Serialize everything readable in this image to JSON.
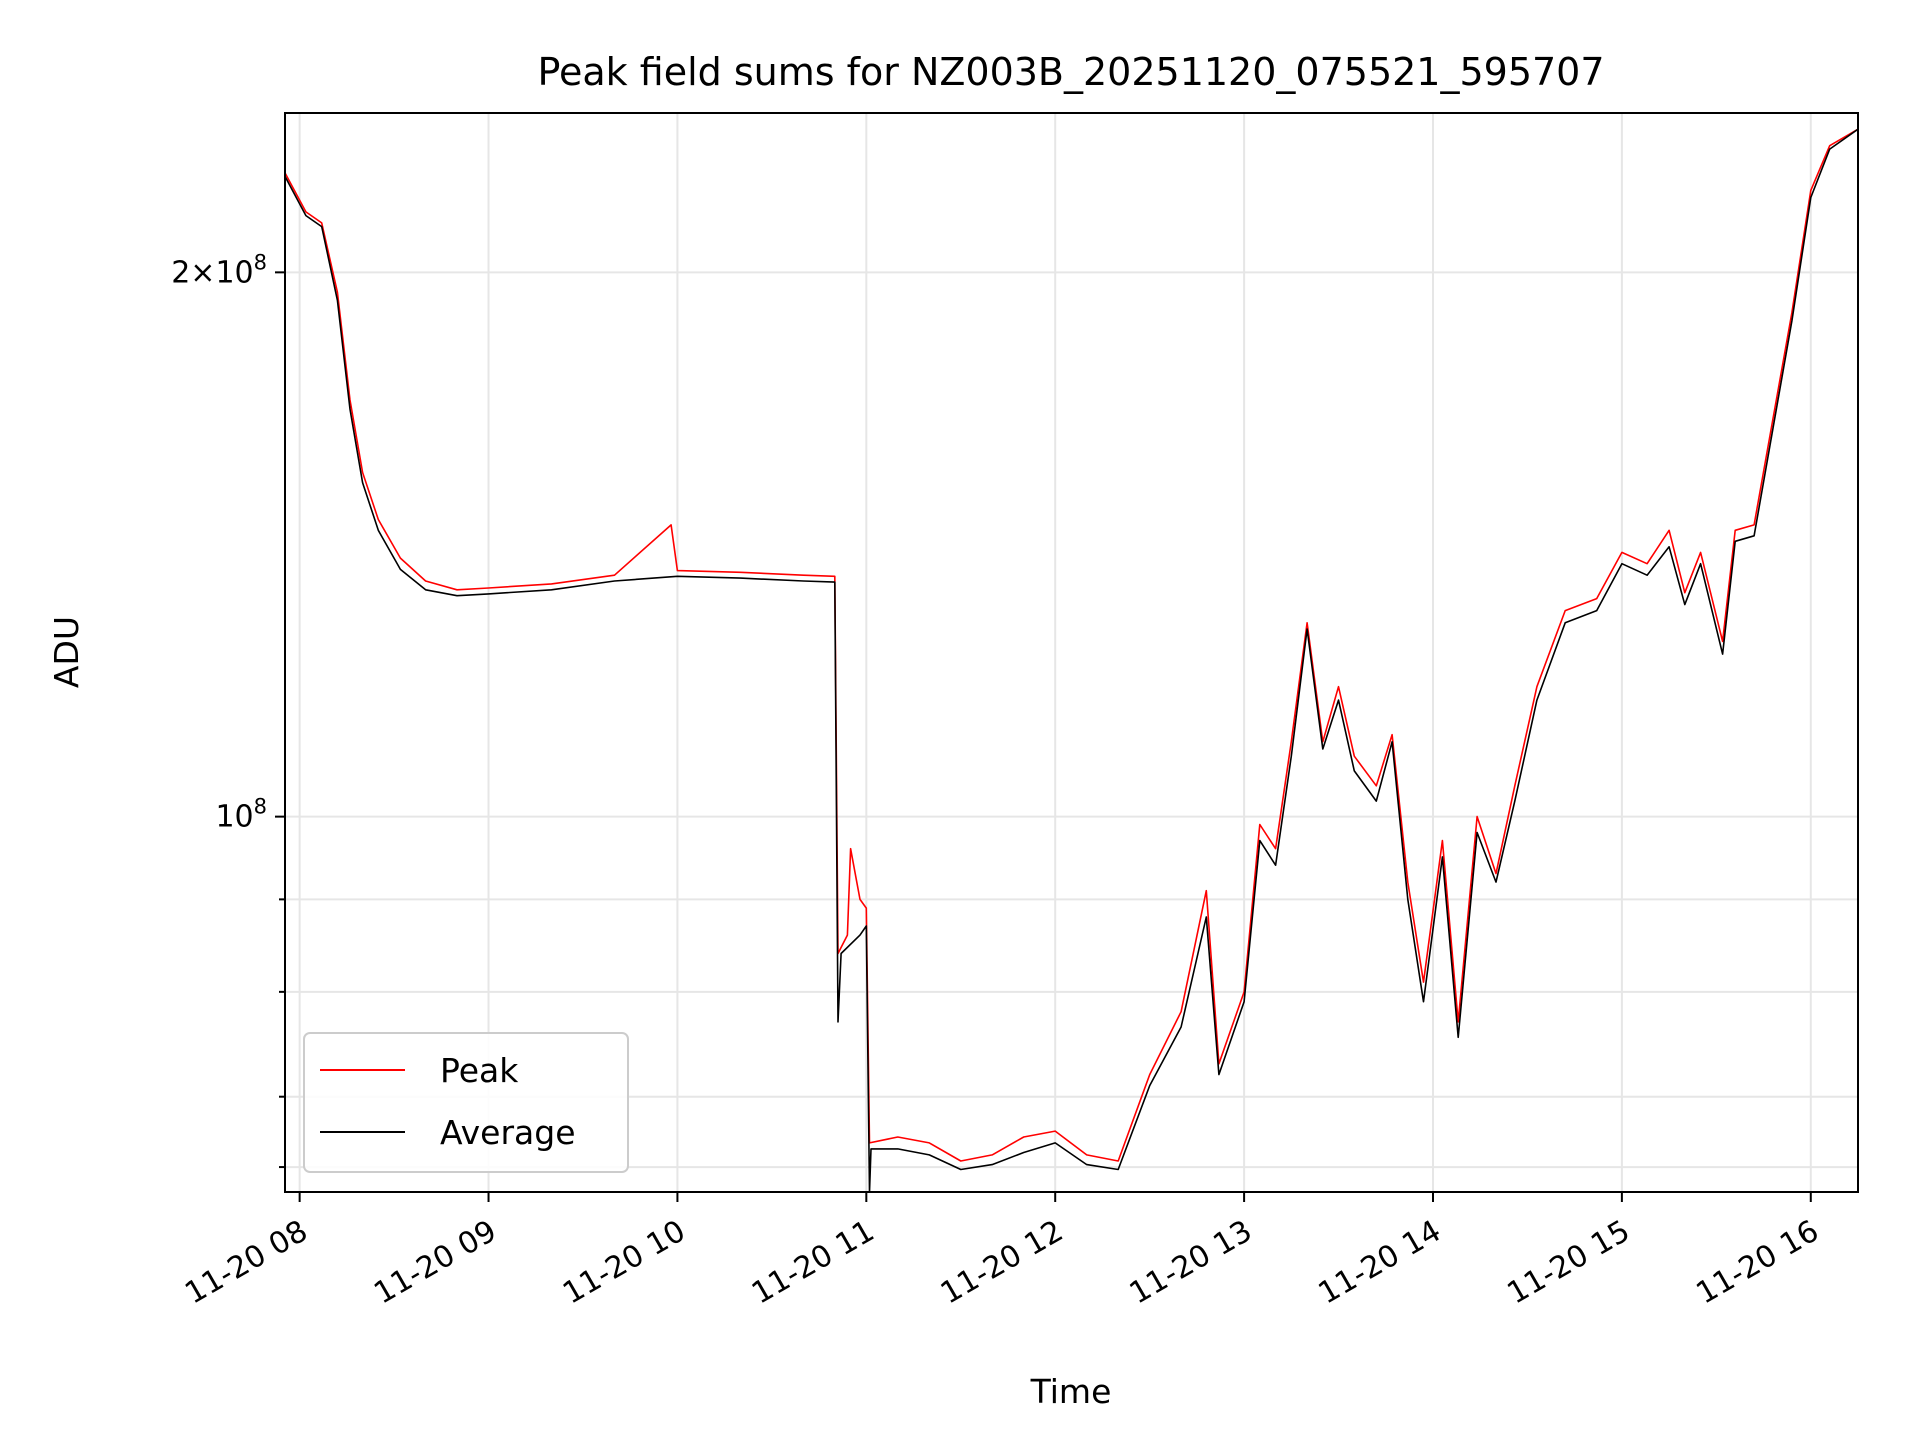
{
  "chart_data": {
    "type": "line",
    "title": "Peak field sums for NZ003B_20251120_075521_595707",
    "xlabel": "Time",
    "ylabel": "ADU",
    "x_axis_type": "time",
    "x_range": [
      "2025-11-20 07:55:21",
      "2025-11-20 16:15:00"
    ],
    "x_ticks": [
      {
        "t": "2025-11-20 08:00",
        "label": "11-20 08"
      },
      {
        "t": "2025-11-20 09:00",
        "label": "11-20 09"
      },
      {
        "t": "2025-11-20 10:00",
        "label": "11-20 10"
      },
      {
        "t": "2025-11-20 11:00",
        "label": "11-20 11"
      },
      {
        "t": "2025-11-20 12:00",
        "label": "11-20 12"
      },
      {
        "t": "2025-11-20 13:00",
        "label": "11-20 13"
      },
      {
        "t": "2025-11-20 14:00",
        "label": "11-20 14"
      },
      {
        "t": "2025-11-20 15:00",
        "label": "11-20 15"
      },
      {
        "t": "2025-11-20 16:00",
        "label": "11-20 16"
      }
    ],
    "y_scale": "log",
    "ylim": [
      62000000,
      245000000
    ],
    "y_major_ticks": [
      {
        "value": 100000000,
        "label": "10^8"
      },
      {
        "value": 200000000,
        "label": "2×10^8"
      }
    ],
    "y_minor_ticks": [
      64000000,
      70000000,
      80000000,
      90000000
    ],
    "grid": true,
    "legend_position": "lower-left",
    "series": [
      {
        "name": "Peak",
        "color": "#ff0000",
        "points": [
          [
            "2025-11-20 07:55:21",
            227000000
          ],
          [
            "2025-11-20 08:02",
            216000000
          ],
          [
            "2025-11-20 08:07",
            213000000
          ],
          [
            "2025-11-20 08:12",
            195000000
          ],
          [
            "2025-11-20 08:16",
            170000000
          ],
          [
            "2025-11-20 08:20",
            155000000
          ],
          [
            "2025-11-20 08:25",
            146000000
          ],
          [
            "2025-11-20 08:32",
            139000000
          ],
          [
            "2025-11-20 08:40",
            135000000
          ],
          [
            "2025-11-20 08:50",
            133500000
          ],
          [
            "2025-11-20 09:00",
            133800000
          ],
          [
            "2025-11-20 09:20",
            134500000
          ],
          [
            "2025-11-20 09:40",
            136000000
          ],
          [
            "2025-11-20 09:58",
            145000000
          ],
          [
            "2025-11-20 10:00",
            136800000
          ],
          [
            "2025-11-20 10:20",
            136500000
          ],
          [
            "2025-11-20 10:40",
            136000000
          ],
          [
            "2025-11-20 10:50",
            135800000
          ],
          [
            "2025-11-20 10:51",
            84000000
          ],
          [
            "2025-11-20 10:54",
            86000000
          ],
          [
            "2025-11-20 10:55",
            96000000
          ],
          [
            "2025-11-20 10:58",
            90000000
          ],
          [
            "2025-11-20 11:00",
            89000000
          ],
          [
            "2025-11-20 11:01",
            66000000
          ],
          [
            "2025-11-20 11:10",
            66500000
          ],
          [
            "2025-11-20 11:20",
            66000000
          ],
          [
            "2025-11-20 11:30",
            64500000
          ],
          [
            "2025-11-20 11:40",
            65000000
          ],
          [
            "2025-11-20 11:50",
            66500000
          ],
          [
            "2025-11-20 12:00",
            67000000
          ],
          [
            "2025-11-20 12:10",
            65000000
          ],
          [
            "2025-11-20 12:20",
            64500000
          ],
          [
            "2025-11-20 12:30",
            72000000
          ],
          [
            "2025-11-20 12:40",
            78000000
          ],
          [
            "2025-11-20 12:48",
            91000000
          ],
          [
            "2025-11-20 12:52",
            73000000
          ],
          [
            "2025-11-20 13:00",
            80000000
          ],
          [
            "2025-11-20 13:05",
            99000000
          ],
          [
            "2025-11-20 13:10",
            96000000
          ],
          [
            "2025-11-20 13:15",
            110000000
          ],
          [
            "2025-11-20 13:20",
            128000000
          ],
          [
            "2025-11-20 13:25",
            110000000
          ],
          [
            "2025-11-20 13:30",
            118000000
          ],
          [
            "2025-11-20 13:35",
            108000000
          ],
          [
            "2025-11-20 13:42",
            104000000
          ],
          [
            "2025-11-20 13:47",
            111000000
          ],
          [
            "2025-11-20 13:52",
            92000000
          ],
          [
            "2025-11-20 13:57",
            81000000
          ],
          [
            "2025-11-20 14:03",
            97000000
          ],
          [
            "2025-11-20 14:08",
            77000000
          ],
          [
            "2025-11-20 14:14",
            100000000
          ],
          [
            "2025-11-20 14:20",
            93000000
          ],
          [
            "2025-11-20 14:26",
            104000000
          ],
          [
            "2025-11-20 14:33",
            118000000
          ],
          [
            "2025-11-20 14:42",
            130000000
          ],
          [
            "2025-11-20 14:52",
            132000000
          ],
          [
            "2025-11-20 15:00",
            140000000
          ],
          [
            "2025-11-20 15:08",
            138000000
          ],
          [
            "2025-11-20 15:15",
            144000000
          ],
          [
            "2025-11-20 15:20",
            133000000
          ],
          [
            "2025-11-20 15:25",
            140000000
          ],
          [
            "2025-11-20 15:32",
            125000000
          ],
          [
            "2025-11-20 15:36",
            144000000
          ],
          [
            "2025-11-20 15:42",
            145000000
          ],
          [
            "2025-11-20 15:48",
            166000000
          ],
          [
            "2025-11-20 15:54",
            190000000
          ],
          [
            "2025-11-20 16:00",
            222000000
          ],
          [
            "2025-11-20 16:06",
            235000000
          ],
          [
            "2025-11-20 16:15",
            240000000
          ]
        ]
      },
      {
        "name": "Average",
        "color": "#000000",
        "points": [
          [
            "2025-11-20 07:55:21",
            226000000
          ],
          [
            "2025-11-20 08:02",
            215000000
          ],
          [
            "2025-11-20 08:07",
            212000000
          ],
          [
            "2025-11-20 08:12",
            193000000
          ],
          [
            "2025-11-20 08:16",
            168000000
          ],
          [
            "2025-11-20 08:20",
            153000000
          ],
          [
            "2025-11-20 08:25",
            144000000
          ],
          [
            "2025-11-20 08:32",
            137000000
          ],
          [
            "2025-11-20 08:40",
            133500000
          ],
          [
            "2025-11-20 08:50",
            132500000
          ],
          [
            "2025-11-20 09:00",
            132800000
          ],
          [
            "2025-11-20 09:20",
            133500000
          ],
          [
            "2025-11-20 09:40",
            135000000
          ],
          [
            "2025-11-20 10:00",
            135800000
          ],
          [
            "2025-11-20 10:20",
            135500000
          ],
          [
            "2025-11-20 10:40",
            135000000
          ],
          [
            "2025-11-20 10:50",
            134800000
          ],
          [
            "2025-11-20 10:51",
            77000000
          ],
          [
            "2025-11-20 10:52",
            84000000
          ],
          [
            "2025-11-20 10:58",
            86000000
          ],
          [
            "2025-11-20 11:00",
            87000000
          ],
          [
            "2025-11-20 11:01",
            62000000
          ],
          [
            "2025-11-20 11:01:30",
            65500000
          ],
          [
            "2025-11-20 11:10",
            65500000
          ],
          [
            "2025-11-20 11:20",
            65000000
          ],
          [
            "2025-11-20 11:30",
            63800000
          ],
          [
            "2025-11-20 11:40",
            64200000
          ],
          [
            "2025-11-20 11:50",
            65200000
          ],
          [
            "2025-11-20 12:00",
            66000000
          ],
          [
            "2025-11-20 12:10",
            64200000
          ],
          [
            "2025-11-20 12:20",
            63800000
          ],
          [
            "2025-11-20 12:30",
            71000000
          ],
          [
            "2025-11-20 12:40",
            76500000
          ],
          [
            "2025-11-20 12:48",
            88000000
          ],
          [
            "2025-11-20 12:52",
            72000000
          ],
          [
            "2025-11-20 13:00",
            79000000
          ],
          [
            "2025-11-20 13:05",
            97000000
          ],
          [
            "2025-11-20 13:10",
            94000000
          ],
          [
            "2025-11-20 13:15",
            108000000
          ],
          [
            "2025-11-20 13:20",
            127000000
          ],
          [
            "2025-11-20 13:25",
            109000000
          ],
          [
            "2025-11-20 13:30",
            116000000
          ],
          [
            "2025-11-20 13:35",
            106000000
          ],
          [
            "2025-11-20 13:42",
            102000000
          ],
          [
            "2025-11-20 13:47",
            110000000
          ],
          [
            "2025-11-20 13:52",
            90000000
          ],
          [
            "2025-11-20 13:57",
            79000000
          ],
          [
            "2025-11-20 14:03",
            95000000
          ],
          [
            "2025-11-20 14:08",
            75500000
          ],
          [
            "2025-11-20 14:14",
            98000000
          ],
          [
            "2025-11-20 14:20",
            92000000
          ],
          [
            "2025-11-20 14:26",
            102000000
          ],
          [
            "2025-11-20 14:33",
            116000000
          ],
          [
            "2025-11-20 14:42",
            128000000
          ],
          [
            "2025-11-20 14:52",
            130000000
          ],
          [
            "2025-11-20 15:00",
            138000000
          ],
          [
            "2025-11-20 15:08",
            136000000
          ],
          [
            "2025-11-20 15:15",
            141000000
          ],
          [
            "2025-11-20 15:20",
            131000000
          ],
          [
            "2025-11-20 15:25",
            138000000
          ],
          [
            "2025-11-20 15:32",
            123000000
          ],
          [
            "2025-11-20 15:36",
            142000000
          ],
          [
            "2025-11-20 15:42",
            143000000
          ],
          [
            "2025-11-20 15:48",
            164000000
          ],
          [
            "2025-11-20 15:54",
            188000000
          ],
          [
            "2025-11-20 16:00",
            220000000
          ],
          [
            "2025-11-20 16:06",
            234000000
          ],
          [
            "2025-11-20 16:15",
            240000000
          ]
        ]
      }
    ]
  }
}
